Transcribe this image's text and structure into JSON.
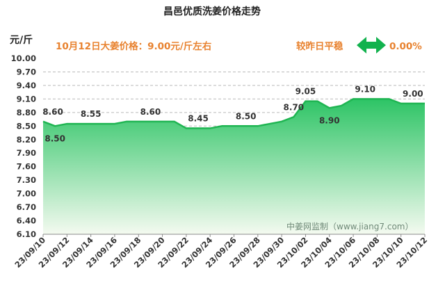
{
  "chart_data": {
    "type": "area",
    "title": "昌邑优质洗姜价格走势",
    "ylabel": "元/斤",
    "ylim": [
      6.1,
      10.0
    ],
    "yticks": [
      "10.00",
      "9.70",
      "9.40",
      "9.10",
      "8.80",
      "8.50",
      "8.20",
      "7.90",
      "7.60",
      "7.30",
      "7.00",
      "6.70",
      "6.40",
      "6.10"
    ],
    "xticks": [
      "23/09/10",
      "23/09/12",
      "23/09/14",
      "23/09/16",
      "23/09/18",
      "23/09/20",
      "23/09/22",
      "23/09/24",
      "23/09/26",
      "23/09/28",
      "23/09/30",
      "23/10/02",
      "23/10/04",
      "23/10/06",
      "23/10/08",
      "23/10/10",
      "23/10/12"
    ],
    "x": [
      "23/09/10",
      "23/09/11",
      "23/09/12",
      "23/09/13",
      "23/09/14",
      "23/09/15",
      "23/09/16",
      "23/09/17",
      "23/09/18",
      "23/09/19",
      "23/09/20",
      "23/09/21",
      "23/09/22",
      "23/09/23",
      "23/09/24",
      "23/09/25",
      "23/09/26",
      "23/09/27",
      "23/09/28",
      "23/09/29",
      "23/09/30",
      "23/10/01",
      "23/10/02",
      "23/10/03",
      "23/10/04",
      "23/10/05",
      "23/10/06",
      "23/10/07",
      "23/10/08",
      "23/10/09",
      "23/10/10",
      "23/10/11",
      "23/10/12"
    ],
    "values": [
      8.6,
      8.5,
      8.55,
      8.55,
      8.55,
      8.55,
      8.55,
      8.6,
      8.6,
      8.6,
      8.6,
      8.6,
      8.45,
      8.45,
      8.45,
      8.5,
      8.5,
      8.5,
      8.5,
      8.55,
      8.6,
      8.7,
      9.05,
      9.05,
      8.9,
      8.95,
      9.1,
      9.1,
      9.1,
      9.1,
      9.0,
      9.0,
      9.0
    ],
    "data_labels": [
      {
        "x": "23/09/10",
        "text": "8.60",
        "pos": "above"
      },
      {
        "x": "23/09/11",
        "text": "8.50",
        "pos": "below"
      },
      {
        "x": "23/09/14",
        "text": "8.55",
        "pos": "above"
      },
      {
        "x": "23/09/19",
        "text": "8.60",
        "pos": "above"
      },
      {
        "x": "23/09/23",
        "text": "8.45",
        "pos": "above"
      },
      {
        "x": "23/09/27",
        "text": "8.50",
        "pos": "above"
      },
      {
        "x": "23/10/01",
        "text": "8.70",
        "pos": "above"
      },
      {
        "x": "23/10/02",
        "text": "9.05",
        "pos": "above"
      },
      {
        "x": "23/10/04",
        "text": "8.90",
        "pos": "below"
      },
      {
        "x": "23/10/07",
        "text": "9.10",
        "pos": "above"
      },
      {
        "x": "23/10/11",
        "text": "9.00",
        "pos": "above"
      }
    ],
    "grid": true,
    "colors": {
      "line": "#1fb552",
      "fill_top": "#2dc465",
      "fill_bottom": "#f4faf0",
      "accent": "#e8822f",
      "arrow": "#12b24e"
    }
  },
  "info": {
    "price_text": "10月12日大姜价格：9.00元/斤左右",
    "change_label": "较昨日平稳",
    "change_value": "0.00%",
    "change_icon": "double-arrow-icon"
  },
  "watermark": "中姜网监制（www.jiang7.com）"
}
